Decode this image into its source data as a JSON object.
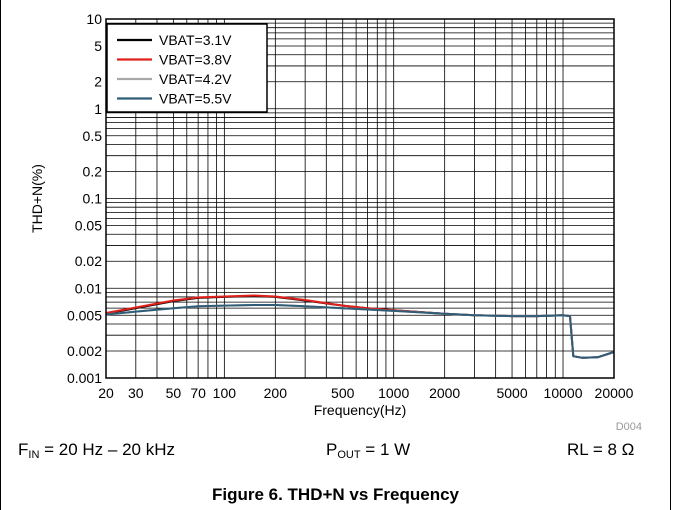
{
  "chart_data": {
    "type": "line",
    "title": "",
    "xlabel": "Frequency(Hz)",
    "ylabel": "THD+N(%)",
    "x_scale": "log",
    "y_scale": "log",
    "xlim": [
      20,
      20000
    ],
    "ylim": [
      0.001,
      10
    ],
    "grid": true,
    "legend_position": "top-left",
    "x_ticks": [
      20,
      30,
      50,
      70,
      100,
      200,
      500,
      1000,
      2000,
      5000,
      10000,
      20000
    ],
    "x_tick_labels": [
      "20",
      "30",
      "50",
      "70",
      "100",
      "200",
      "500",
      "1000",
      "2000",
      "5000",
      "10000",
      "20000"
    ],
    "y_ticks": [
      0.001,
      0.002,
      0.005,
      0.01,
      0.02,
      0.05,
      0.1,
      0.2,
      0.5,
      1,
      2,
      5,
      10
    ],
    "y_tick_labels": [
      "0.001",
      "0.002",
      "0.005",
      "0.01",
      "0.02",
      "0.05",
      "0.1",
      "0.2",
      "0.5",
      "1",
      "2",
      "5",
      "10"
    ],
    "series": [
      {
        "name": "VBAT=3.1V",
        "color": "#000000",
        "x": [
          20,
          30,
          50,
          70,
          100,
          150,
          200,
          300,
          500,
          700,
          1000,
          2000,
          3000,
          5000,
          7000,
          10000,
          11000,
          11500,
          13000,
          16000,
          20000
        ],
        "y": [
          0.0052,
          0.006,
          0.0072,
          0.0078,
          0.008,
          0.0082,
          0.008,
          0.0073,
          0.0064,
          0.006,
          0.0057,
          0.0052,
          0.005,
          0.0049,
          0.0049,
          0.005,
          0.0049,
          0.00175,
          0.00168,
          0.0017,
          0.00195
        ]
      },
      {
        "name": "VBAT=3.8V",
        "color": "#e0201b",
        "x": [
          20,
          30,
          50,
          70,
          100,
          150,
          200,
          300,
          500,
          700,
          1000,
          2000,
          3000,
          5000,
          7000,
          10000,
          11000,
          11500,
          13000,
          16000,
          20000
        ],
        "y": [
          0.0053,
          0.0061,
          0.0073,
          0.0079,
          0.0081,
          0.0083,
          0.0081,
          0.0074,
          0.0064,
          0.006,
          0.0057,
          0.0052,
          0.005,
          0.0049,
          0.0049,
          0.005,
          0.0049,
          0.00175,
          0.00168,
          0.0017,
          0.00195
        ]
      },
      {
        "name": "VBAT=4.2V",
        "color": "#a8a8a8",
        "x": [
          20,
          30,
          50,
          70,
          100,
          150,
          200,
          300,
          500,
          700,
          1000,
          2000,
          3000,
          5000,
          7000,
          10000,
          11000,
          11500,
          13000,
          16000,
          20000
        ],
        "y": [
          0.0051,
          0.0055,
          0.006,
          0.0063,
          0.0064,
          0.0065,
          0.0065,
          0.0063,
          0.006,
          0.0058,
          0.0056,
          0.0052,
          0.005,
          0.0049,
          0.0049,
          0.005,
          0.0049,
          0.00175,
          0.00168,
          0.0017,
          0.00195
        ]
      },
      {
        "name": "VBAT=5.5V",
        "color": "#2f5d78",
        "x": [
          20,
          30,
          50,
          70,
          100,
          150,
          200,
          300,
          500,
          700,
          1000,
          2000,
          3000,
          5000,
          7000,
          10000,
          11000,
          11500,
          13000,
          16000,
          20000
        ],
        "y": [
          0.0051,
          0.0055,
          0.006,
          0.0063,
          0.0064,
          0.0065,
          0.0065,
          0.0063,
          0.006,
          0.0058,
          0.0056,
          0.0052,
          0.005,
          0.0049,
          0.0049,
          0.005,
          0.0049,
          0.00175,
          0.00168,
          0.0017,
          0.00195
        ]
      }
    ],
    "watermark": "D004"
  },
  "conditions": {
    "fin_prefix": "F",
    "fin_sub": "IN",
    "fin_value": " = 20 Hz – 20 kHz",
    "pout_prefix": "P",
    "pout_sub": "OUT",
    "pout_value": " = 1 W",
    "rl": "RL = 8 Ω"
  },
  "caption": "Figure 6. THD+N vs Frequency"
}
